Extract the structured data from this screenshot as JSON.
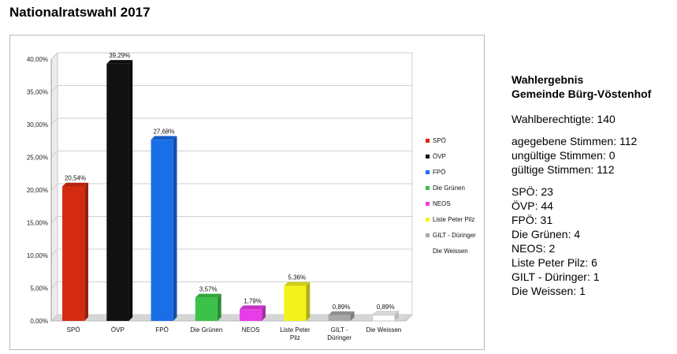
{
  "page_title": "Nationalratswahl 2017",
  "summary": {
    "heading_line1": "Wahlergebnis",
    "heading_line2": "Gemeinde Bürg-Vöstenhof",
    "eligible": "Wahlberechtigte: 140",
    "cast": "agegebene Stimmen: 112",
    "invalid": "ungültige Stimmen: 0",
    "valid": "gültige Stimmen: 112",
    "votes": [
      "SPÖ: 23",
      "ÖVP: 44",
      "FPÖ: 31",
      "Die Grünen: 4",
      "NEOS: 2",
      "Liste Peter Pilz: 6",
      "GILT - Düringer: 1",
      "Die Weissen: 1"
    ]
  },
  "chart_data": {
    "type": "bar",
    "categories": [
      "SPÖ",
      "ÖVP",
      "FPÖ",
      "Die Grünen",
      "NEOS",
      "Liste Peter Pilz",
      "GILT - Düringer",
      "Die Weissen"
    ],
    "category_lines": [
      [
        "SPÖ"
      ],
      [
        "ÖVP"
      ],
      [
        "FPÖ"
      ],
      [
        "Die Grünen"
      ],
      [
        "NEOS"
      ],
      [
        "Liste Peter",
        "Pilz"
      ],
      [
        "GILT -",
        "Düringer"
      ],
      [
        "Die Weissen"
      ]
    ],
    "values": [
      20.54,
      39.29,
      27.68,
      3.57,
      1.79,
      5.36,
      0.89,
      0.89
    ],
    "data_labels": [
      "20,54%",
      "39,29%",
      "27,68%",
      "3,57%",
      "1,79%",
      "5,36%",
      "0,89%",
      "0,89%"
    ],
    "colors": [
      "#d42a10",
      "#111111",
      "#1a6ee8",
      "#3cc24a",
      "#e83ce8",
      "#f2f21c",
      "#a8a8a8",
      "#ffffff"
    ],
    "ylim": [
      0,
      40
    ],
    "yticks": [
      0,
      5,
      10,
      15,
      20,
      25,
      30,
      35,
      40
    ],
    "ytick_labels": [
      "0,00%",
      "5,00%",
      "10,00%",
      "15,00%",
      "20,00%",
      "25,00%",
      "30,00%",
      "35,00%",
      "40,00%"
    ],
    "legend": {
      "placement": "right",
      "entries": [
        "SPÖ",
        "ÖVP",
        "FPÖ",
        "Die Grünen",
        "NEOS",
        "Liste Peter Pilz",
        "GILT - Düringer",
        "Die Weissen"
      ]
    },
    "grid": true
  }
}
